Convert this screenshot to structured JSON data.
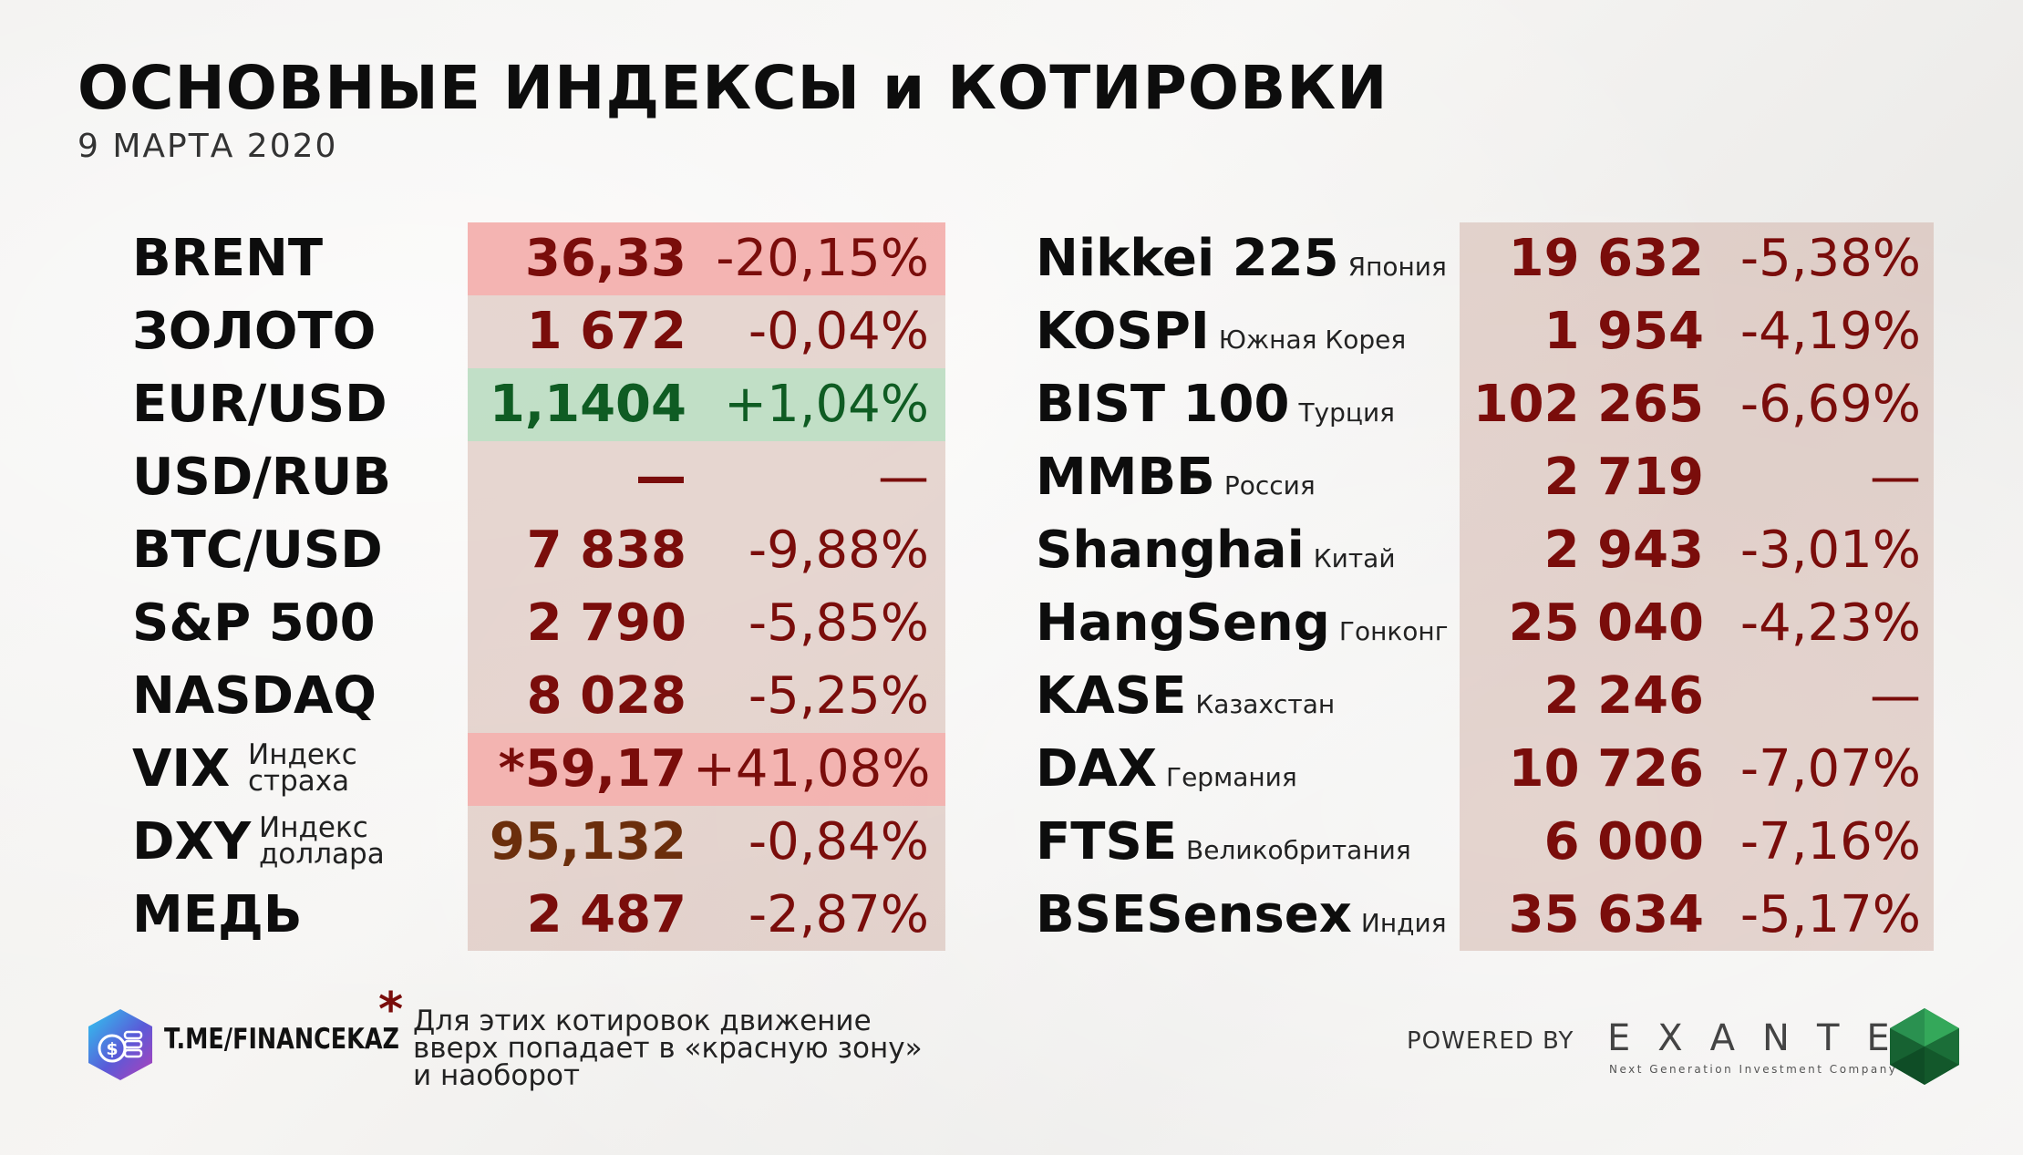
{
  "header": {
    "title": "ОСНОВНЫЕ ИНДЕКСЫ и КОТИРОВКИ",
    "date": "9 МАРТА 2020"
  },
  "left_table": [
    {
      "name": "BRENT",
      "value": "36,33",
      "change": "-20,15%",
      "highlight": "red"
    },
    {
      "name": "ЗОЛОТО",
      "value": "1 672",
      "change": "-0,04%",
      "highlight": "none"
    },
    {
      "name": "EUR/USD",
      "value": "1,1404",
      "change": "+1,04%",
      "highlight": "green"
    },
    {
      "name": "USD/RUB",
      "value": "—",
      "change": "—",
      "highlight": "none"
    },
    {
      "name": "BTC/USD",
      "value": "7 838",
      "change": "-9,88%",
      "highlight": "none"
    },
    {
      "name": "S&P 500",
      "value": "2 790",
      "change": "-5,85%",
      "highlight": "none"
    },
    {
      "name": "NASDAQ",
      "value": "8 028",
      "change": "-5,25%",
      "highlight": "none"
    },
    {
      "name": "VIX",
      "subline1": "Индекс",
      "subline2": "страха",
      "value": "*59,17",
      "change": "+41,08%",
      "highlight": "red"
    },
    {
      "name": "DXY",
      "subline1": "Индекс",
      "subline2": "доллара",
      "value": "95,132",
      "change": "-0,84%",
      "highlight": "none"
    },
    {
      "name": "МЕДЬ",
      "value": "2 487",
      "change": "-2,87%",
      "highlight": "none"
    }
  ],
  "right_table": [
    {
      "name": "Nikkei 225",
      "country": "Япония",
      "value": "19 632",
      "change": "-5,38%"
    },
    {
      "name": "KOSPI",
      "country": "Южная Корея",
      "value": "1 954",
      "change": "-4,19%"
    },
    {
      "name": "BIST 100",
      "country": "Турция",
      "value": "102 265",
      "change": "-6,69%"
    },
    {
      "name": "ММВБ",
      "country": "Россия",
      "value": "2 719",
      "change": "—"
    },
    {
      "name": "Shanghai",
      "country": "Китай",
      "value": "2 943",
      "change": "-3,01%"
    },
    {
      "name": "HangSeng",
      "country": "Гонконг",
      "value": "25 040",
      "change": "-4,23%"
    },
    {
      "name": "KASE",
      "country": "Казахстан",
      "value": "2 246",
      "change": "—"
    },
    {
      "name": "DAX",
      "country": "Германия",
      "value": "10 726",
      "change": "-7,07%"
    },
    {
      "name": "FTSE",
      "country": "Великобритания",
      "value": "6 000",
      "change": "-7,16%"
    },
    {
      "name": "BSESensex",
      "country": "Индия",
      "value": "35 634",
      "change": "-5,17%"
    }
  ],
  "footer": {
    "telegram": "T.ME/FINANCEKAZ",
    "note_star": "*",
    "note_lines": [
      "Для этих котировок движение",
      "вверх попадает в «красную зону»",
      "и наоборот"
    ],
    "powered_by": "POWERED BY",
    "brand": "EXANTE",
    "brand_tagline": "Next Generation Investment Company"
  },
  "colors": {
    "value_red": "#7a0d0b",
    "value_green": "#0f5c23",
    "value_brown": "#6b2e0c",
    "panel": "#c9a193",
    "highlight_red": "#ff9999",
    "highlight_green": "#b4e1c3"
  },
  "icons": {
    "telegram_logo": "coin-hexagon-icon",
    "brand_logo": "green-gem-icon"
  }
}
